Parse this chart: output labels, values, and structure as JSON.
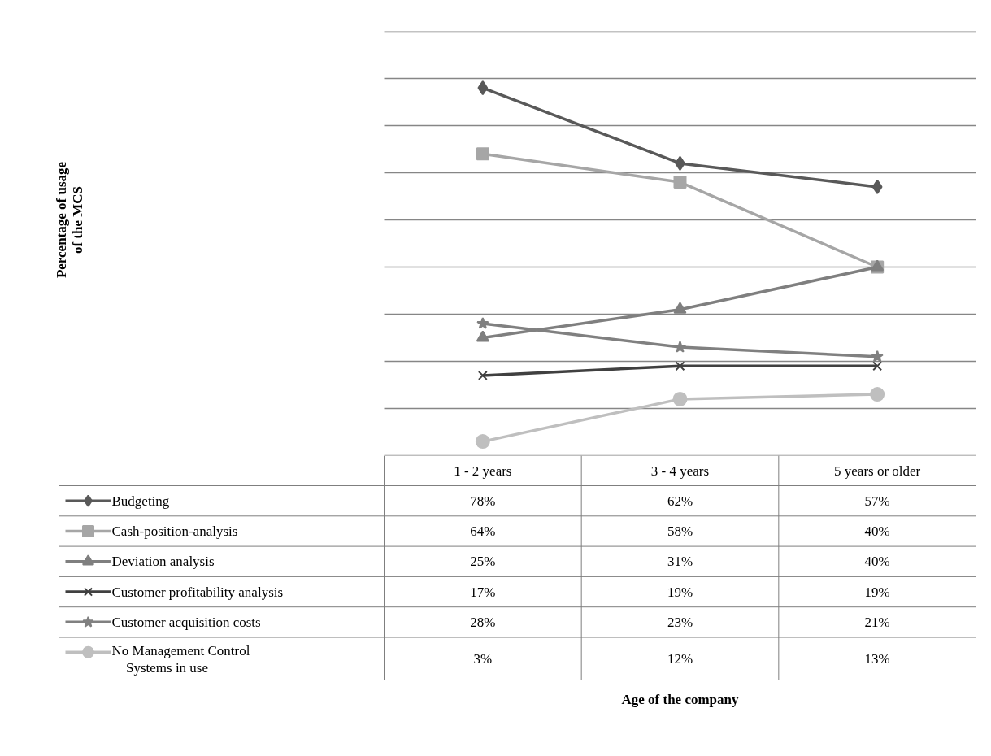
{
  "chart_data": {
    "type": "line",
    "annotations": [
      "Percentage of usage\nof the MCS",
      "Age of the company"
    ],
    "categories": [
      "1 - 2 years",
      "3 - 4 years",
      "5 years or older"
    ],
    "ylim": [
      0,
      90
    ],
    "yticks": [
      {
        "value": 0,
        "label": null
      },
      {
        "value": 10,
        "label": null
      },
      {
        "value": 20,
        "label": null
      },
      {
        "value": 30,
        "label": null
      },
      {
        "value": 40,
        "label": null
      },
      {
        "value": 50,
        "label": null
      },
      {
        "value": 60,
        "label": null
      },
      {
        "value": 70,
        "label": null
      },
      {
        "value": 80,
        "label": null
      },
      {
        "value": 90,
        "label": null
      }
    ],
    "grid": "y",
    "legend": "bottom left",
    "tick_labels": "x",
    "data_labels": true,
    "series": [
      {
        "name": "Budgeting",
        "color": "#595959",
        "marker": "diamond",
        "values": [
          78,
          62,
          57
        ],
        "value_labels": [
          "78%",
          "62%",
          "57%"
        ]
      },
      {
        "name": "Cash-position-analysis",
        "color": "#a6a6a6",
        "marker": "square",
        "values": [
          64,
          58,
          40
        ],
        "value_labels": [
          "64%",
          "58%",
          "40%"
        ]
      },
      {
        "name": "Deviation analysis",
        "color": "#7f7f7f",
        "marker": "triangle",
        "values": [
          25,
          31,
          40
        ],
        "value_labels": [
          "25%",
          "31%",
          "40%"
        ]
      },
      {
        "name": "Customer profitability analysis",
        "color": "#404040",
        "marker": "cross",
        "values": [
          17,
          19,
          19
        ],
        "value_labels": [
          "17%",
          "19%",
          "19%"
        ]
      },
      {
        "name": "Customer acquisition costs",
        "color": "#808080",
        "marker": "star",
        "values": [
          28,
          23,
          21
        ],
        "value_labels": [
          "28%",
          "23%",
          "21%"
        ]
      },
      {
        "name": "No Management Control Systems in use",
        "color": "#bfbfbf",
        "marker": "circle",
        "values": [
          3,
          12,
          13
        ],
        "value_labels": [
          "3%",
          "12%",
          "13%"
        ]
      }
    ]
  }
}
